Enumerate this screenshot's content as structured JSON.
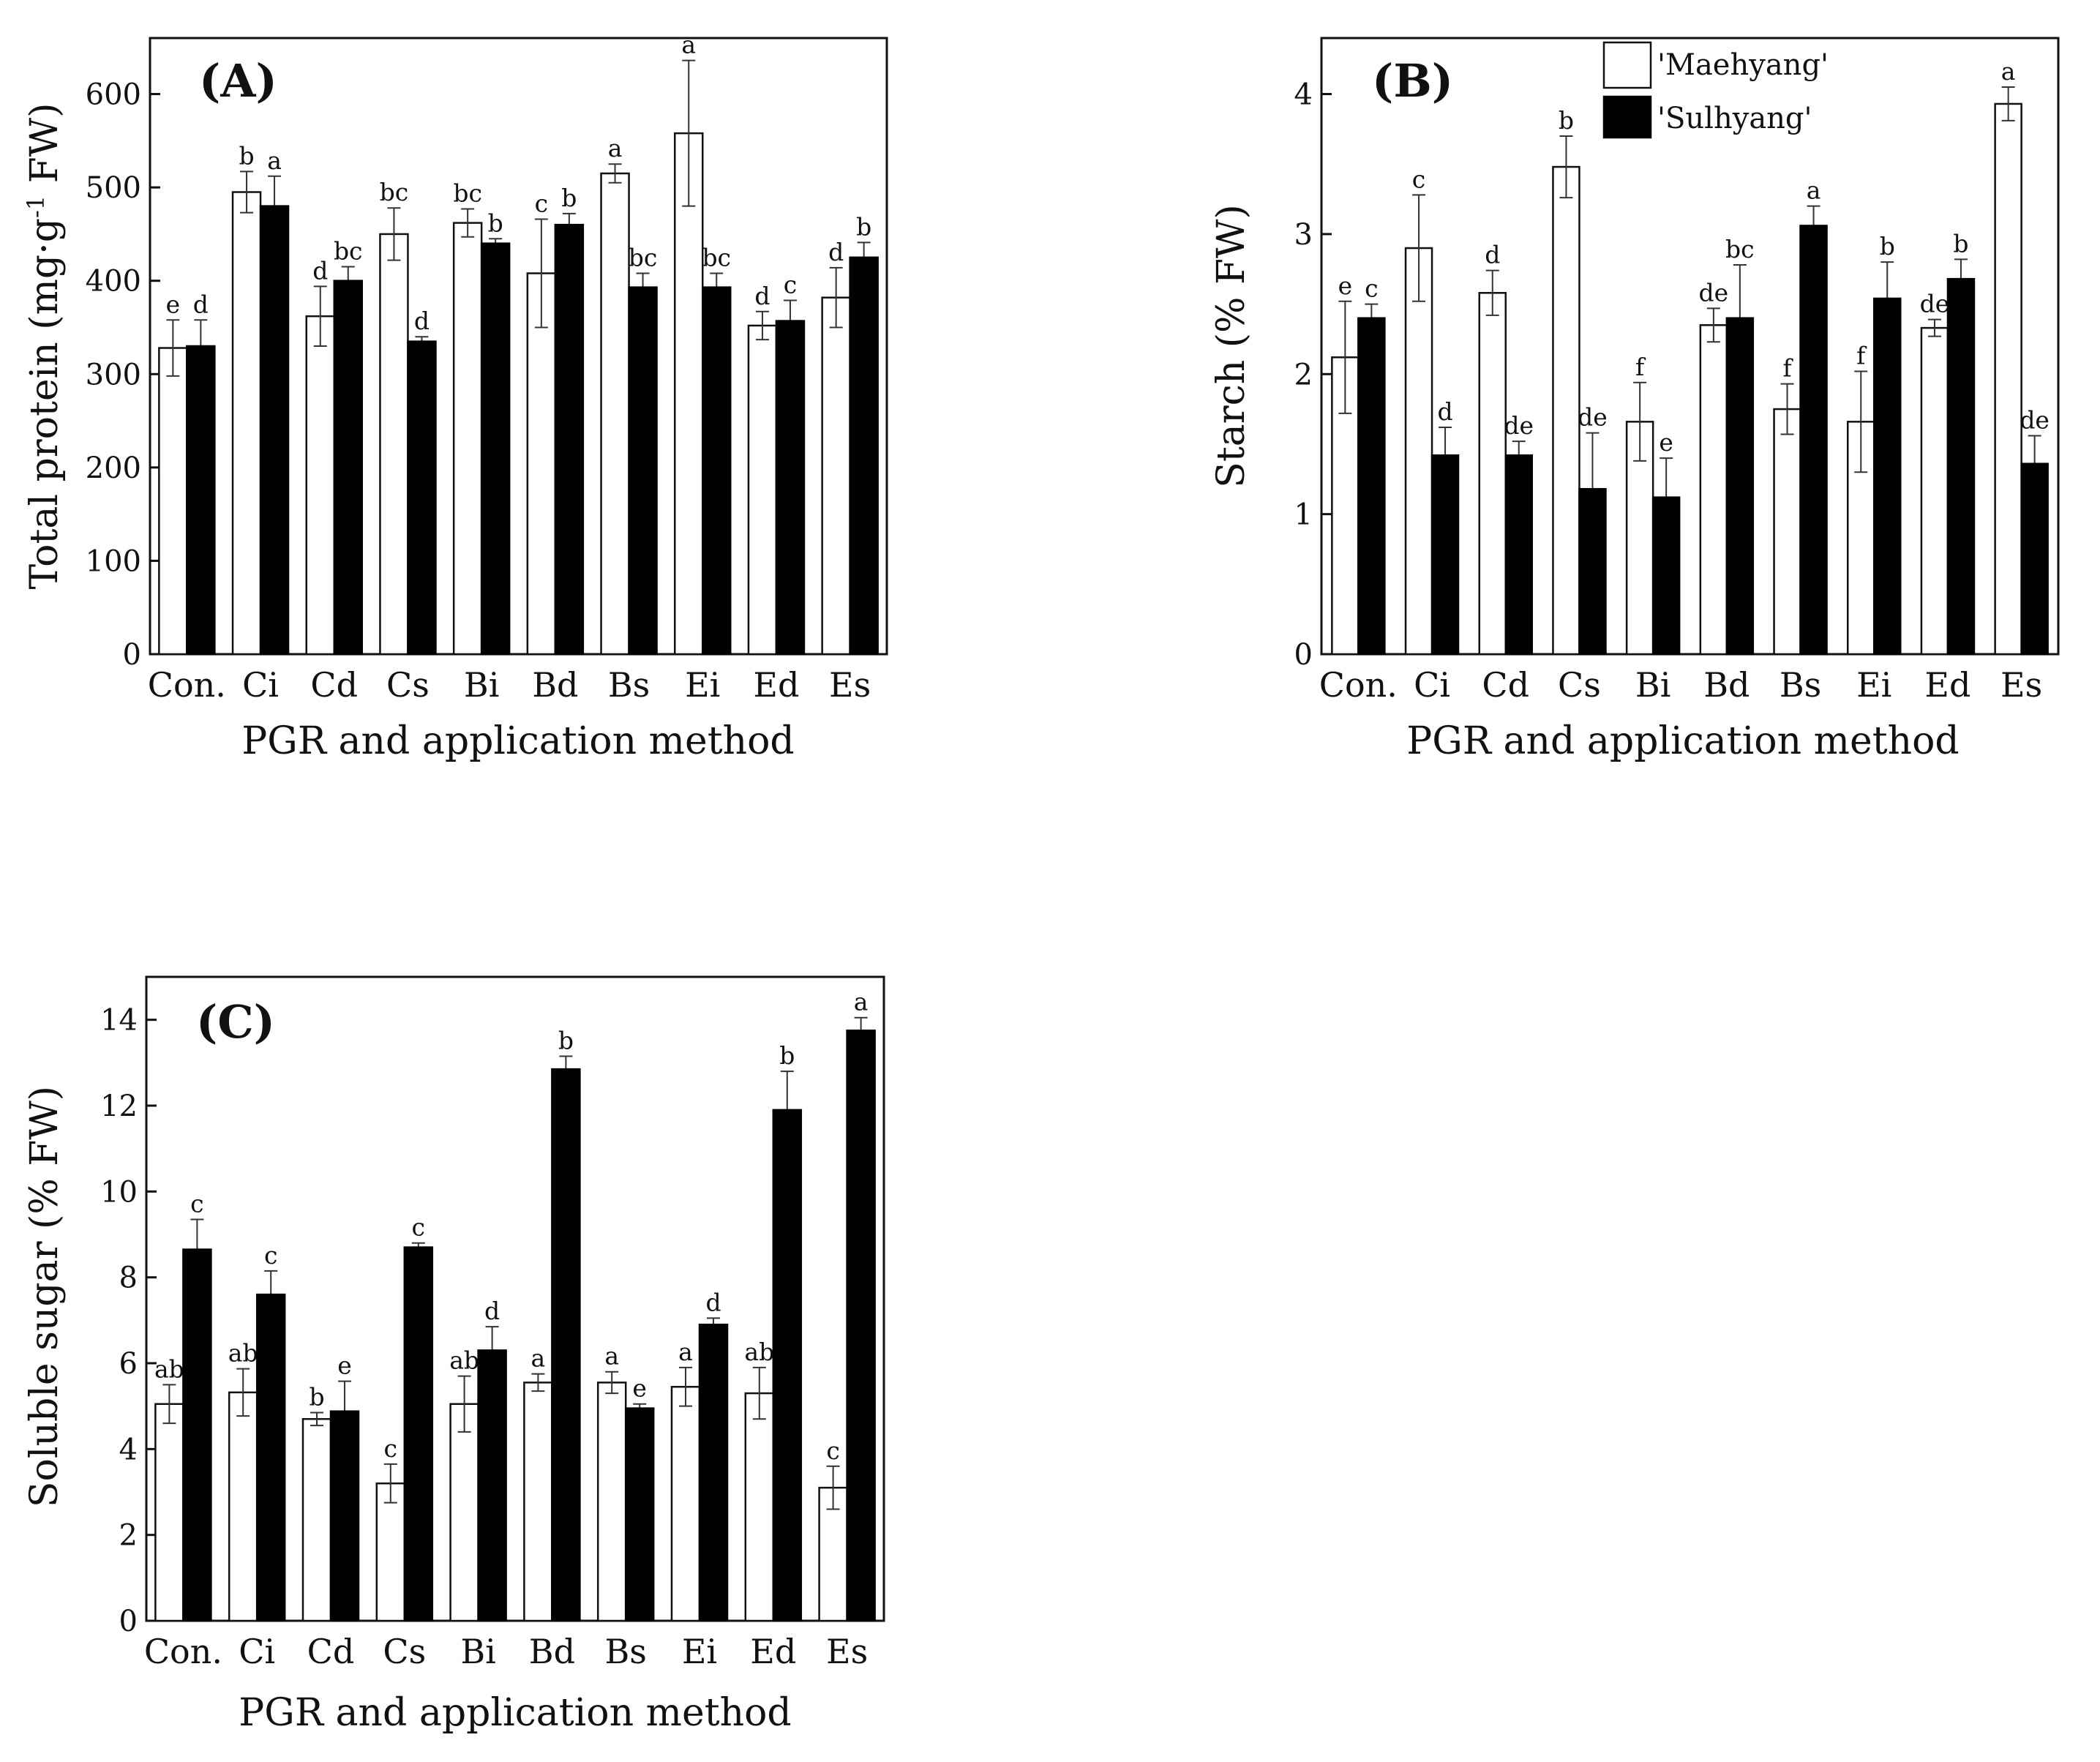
{
  "chart_data": [
    {
      "type": "bar",
      "panel_label": "(A)",
      "title": "",
      "xlabel": "PGR and application method",
      "ylabel": "Total protein (mg·g",
      "ylabel_sup": "-1",
      "ylabel_tail": " FW)",
      "ylim": [
        0,
        660
      ],
      "yticks": [
        0,
        100,
        200,
        300,
        400,
        500,
        600
      ],
      "categories": [
        "Con.",
        "Ci",
        "Cd",
        "Cs",
        "Bi",
        "Bd",
        "Bs",
        "Ei",
        "Ed",
        "Es"
      ],
      "series": [
        {
          "name": "'Maehyang'",
          "color": "#ffffff",
          "values": [
            328,
            495,
            362,
            450,
            462,
            408,
            515,
            558,
            352,
            382
          ],
          "errors": [
            30,
            22,
            32,
            28,
            15,
            58,
            10,
            78,
            15,
            32
          ],
          "letters": [
            "e",
            "b",
            "d",
            "bc",
            "bc",
            "c",
            "a",
            "a",
            "d",
            "d"
          ]
        },
        {
          "name": "'Sulhyang'",
          "color": "#000000",
          "values": [
            330,
            480,
            400,
            335,
            440,
            460,
            393,
            393,
            357,
            425
          ],
          "errors": [
            28,
            32,
            15,
            5,
            5,
            12,
            15,
            15,
            22,
            16
          ],
          "letters": [
            "d",
            "a",
            "bc",
            "d",
            "b",
            "b",
            "bc",
            "bc",
            "c",
            "b"
          ]
        }
      ]
    },
    {
      "type": "bar",
      "panel_label": "(B)",
      "title": "",
      "xlabel": "PGR and application method",
      "ylabel": "Starch (% FW)",
      "ylim": [
        0,
        4.4
      ],
      "yticks": [
        0,
        1,
        2,
        3,
        4
      ],
      "legend_position": "top",
      "categories": [
        "Con.",
        "Ci",
        "Cd",
        "Cs",
        "Bi",
        "Bd",
        "Bs",
        "Ei",
        "Ed",
        "Es"
      ],
      "series": [
        {
          "name": "'Maehyang'",
          "color": "#ffffff",
          "values": [
            2.12,
            2.9,
            2.58,
            3.48,
            1.66,
            2.35,
            1.75,
            1.66,
            2.33,
            3.93
          ],
          "errors": [
            0.4,
            0.38,
            0.16,
            0.22,
            0.28,
            0.12,
            0.18,
            0.36,
            0.06,
            0.12
          ],
          "letters": [
            "e",
            "c",
            "d",
            "b",
            "f",
            "de",
            "f",
            "f",
            "de",
            "a"
          ]
        },
        {
          "name": "'Sulhyang'",
          "color": "#000000",
          "values": [
            2.4,
            1.42,
            1.42,
            1.18,
            1.12,
            2.4,
            3.06,
            2.54,
            2.68,
            1.36
          ],
          "errors": [
            0.1,
            0.2,
            0.1,
            0.4,
            0.28,
            0.38,
            0.14,
            0.26,
            0.14,
            0.2
          ],
          "letters": [
            "c",
            "d",
            "de",
            "de",
            "e",
            "bc",
            "a",
            "b",
            "b",
            "de"
          ]
        }
      ]
    },
    {
      "type": "bar",
      "panel_label": "(C)",
      "title": "",
      "xlabel": "PGR and application method",
      "ylabel": "Soluble sugar (% FW)",
      "ylim": [
        0,
        15
      ],
      "yticks": [
        0,
        2,
        4,
        6,
        8,
        10,
        12,
        14
      ],
      "categories": [
        "Con.",
        "Ci",
        "Cd",
        "Cs",
        "Bi",
        "Bd",
        "Bs",
        "Ei",
        "Ed",
        "Es"
      ],
      "series": [
        {
          "name": "'Maehyang'",
          "color": "#ffffff",
          "values": [
            5.05,
            5.32,
            4.7,
            3.2,
            5.05,
            5.55,
            5.55,
            5.45,
            5.3,
            3.1
          ],
          "errors": [
            0.45,
            0.55,
            0.15,
            0.45,
            0.65,
            0.2,
            0.25,
            0.45,
            0.6,
            0.5
          ],
          "letters": [
            "ab",
            "ab",
            "b",
            "c",
            "ab",
            "a",
            "a",
            "a",
            "ab",
            "c"
          ]
        },
        {
          "name": "'Sulhyang'",
          "color": "#000000",
          "values": [
            8.65,
            7.6,
            4.88,
            8.7,
            6.3,
            12.85,
            4.95,
            6.9,
            11.9,
            13.75
          ],
          "errors": [
            0.7,
            0.55,
            0.7,
            0.1,
            0.55,
            0.3,
            0.1,
            0.15,
            0.9,
            0.3
          ],
          "letters": [
            "c",
            "c",
            "e",
            "c",
            "d",
            "b",
            "e",
            "d",
            "b",
            "a"
          ]
        }
      ]
    }
  ]
}
